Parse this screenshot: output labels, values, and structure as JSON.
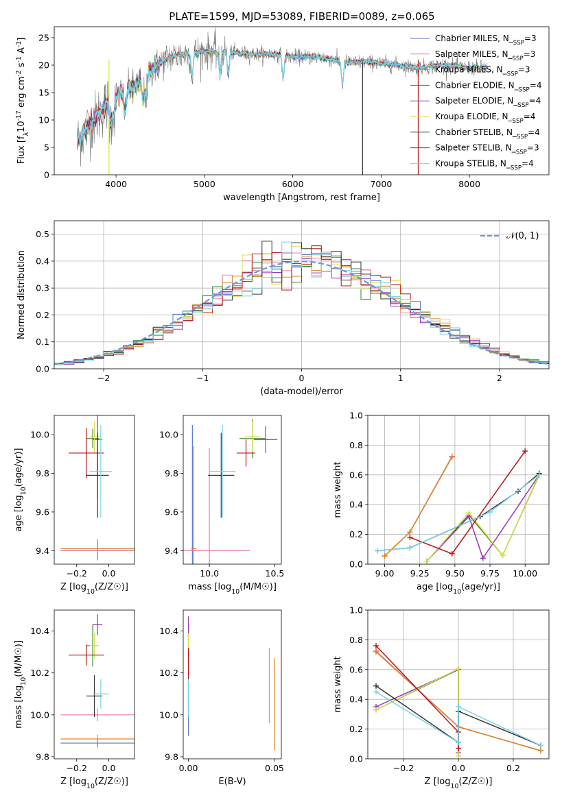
{
  "chart_data": [
    {
      "type": "line",
      "title": "PLATE=1599, MJD=53089, FIBERID=0089, z=0.065",
      "xlabel": "wavelength [Angstrom, rest frame]",
      "ylabel": "Flux [f_λ10^-17 erg cm^-2 s^-1 A^-1]",
      "xlim": [
        3300,
        8900
      ],
      "ylim": [
        0,
        27
      ],
      "xticks": [
        4000,
        5000,
        6000,
        7000,
        8000
      ],
      "yticks": [
        0,
        5,
        10,
        15,
        20,
        25
      ],
      "legend_position": "top-right",
      "series": [
        {
          "name": "Chabrier MILES, N_SSP=3",
          "color": "#5577cc"
        },
        {
          "name": "Salpeter MILES, N_SSP=3",
          "color": "#ee7f9f"
        },
        {
          "name": "Kroupa MILES, N_SSP=3",
          "color": "#dd8822"
        },
        {
          "name": "Chabrier ELODIE, N_SSP=4",
          "color": "#2f7f2f"
        },
        {
          "name": "Salpeter ELODIE, N_SSP=4",
          "color": "#9933bb"
        },
        {
          "name": "Kroupa ELODIE, N_SSP=4",
          "color": "#d8e04a"
        },
        {
          "name": "Chabrier STELIB, N_SSP=4",
          "color": "#333333"
        },
        {
          "name": "Salpeter STELIB, N_SSP=3",
          "color": "#bb1111"
        },
        {
          "name": "Kroupa STELIB, N_SSP=4",
          "color": "#77d3e6"
        }
      ],
      "continuum_shape": {
        "x": [
          3560,
          3700,
          3900,
          4050,
          4200,
          4400,
          4600,
          4800,
          5000,
          5200,
          5500,
          5800,
          6000,
          6300,
          6600,
          6900,
          7200,
          7400,
          7700,
          8000,
          8200
        ],
        "y": [
          6,
          9,
          13,
          15,
          16,
          19,
          21.5,
          22,
          22.5,
          22.5,
          22,
          22,
          21.5,
          21.5,
          20.5,
          20.5,
          20,
          19.5,
          20,
          19.5,
          19.5
        ]
      },
      "data_line_color": "#777777"
    },
    {
      "type": "line",
      "title": "",
      "xlabel": "(data-model)/error",
      "ylabel": "Normed distribution",
      "xlim": [
        -2.5,
        2.5
      ],
      "ylim": [
        0,
        0.55
      ],
      "xticks": [
        -2,
        -1,
        0,
        1,
        2
      ],
      "yticks": [
        0.0,
        0.1,
        0.2,
        0.3,
        0.4,
        0.5
      ],
      "grid": true,
      "legend_position": "top-right",
      "reference_curve": {
        "name": "𝒩(0, 1)",
        "color": "#6699dd",
        "style": "dashed"
      },
      "histogram_bins": 50,
      "histogram_colors": [
        "#5577cc",
        "#ee7f9f",
        "#dd8822",
        "#2f7f2f",
        "#9933bb",
        "#d8e04a",
        "#333333",
        "#bb1111",
        "#77d3e6"
      ]
    },
    {
      "type": "scatter",
      "title": "",
      "xlabel": "Z [log10(Z/Z☉)]",
      "ylabel": "age  [log10(age/yr)]",
      "xlim": [
        -0.34,
        0.16
      ],
      "ylim": [
        9.33,
        10.1
      ],
      "xticks": [
        -0.2,
        0.0
      ],
      "yticks": [
        9.4,
        9.6,
        9.8,
        10.0
      ],
      "points": [
        {
          "color": "#5577cc",
          "x": -0.07,
          "y": 9.4,
          "xerr": 0.23,
          "yerr": 0.05
        },
        {
          "color": "#ee7f9f",
          "x": -0.07,
          "y": 9.4,
          "xerr": 0.23,
          "yerr": 0.05
        },
        {
          "color": "#dd8822",
          "x": -0.07,
          "y": 9.41,
          "xerr": 0.23,
          "yerr": 0.05
        },
        {
          "color": "#2f7f2f",
          "x": -0.1,
          "y": 9.98,
          "xerr": 0.04,
          "yerr": 0.05
        },
        {
          "color": "#9933bb",
          "x": -0.07,
          "y": 9.975,
          "xerr": 0.03,
          "yerr": 0.3
        },
        {
          "color": "#d8e04a",
          "x": -0.09,
          "y": 9.99,
          "xerr": 0.03,
          "yerr": 0.08
        },
        {
          "color": "#333333",
          "x": -0.07,
          "y": 9.79,
          "xerr": 0.07,
          "yerr": 0.22
        },
        {
          "color": "#bb1111",
          "x": -0.14,
          "y": 9.905,
          "xerr": 0.11,
          "yerr": 0.13
        },
        {
          "color": "#77d3e6",
          "x": -0.05,
          "y": 9.81,
          "xerr": 0.07,
          "yerr": 0.24
        }
      ]
    },
    {
      "type": "scatter",
      "title": "",
      "xlabel": "mass [log10(M/M☉)]",
      "ylabel": "",
      "xlim": [
        9.8,
        10.55
      ],
      "ylim": [
        9.33,
        10.1
      ],
      "xticks": [
        10.0,
        10.5
      ],
      "yticks": [
        9.4,
        9.6,
        9.8,
        10.0
      ],
      "points": [
        {
          "color": "#5577cc",
          "x": 9.87,
          "y": 9.4,
          "xerr": 0.02,
          "yerr": 0.65
        },
        {
          "color": "#ee7f9f",
          "x": 10.0,
          "y": 9.4,
          "xerr": 0.31,
          "yerr": 0.53
        },
        {
          "color": "#dd8822",
          "x": 9.88,
          "y": 9.41,
          "xerr": 0.02,
          "yerr": 0.53
        },
        {
          "color": "#2f7f2f",
          "x": 10.33,
          "y": 9.98,
          "xerr": 0.1,
          "yerr": 0.1
        },
        {
          "color": "#9933bb",
          "x": 10.43,
          "y": 9.975,
          "xerr": 0.09,
          "yerr": 0.07
        },
        {
          "color": "#d8e04a",
          "x": 10.33,
          "y": 9.99,
          "xerr": 0.06,
          "yerr": 0.08
        },
        {
          "color": "#333333",
          "x": 10.09,
          "y": 9.79,
          "xerr": 0.1,
          "yerr": 0.22
        },
        {
          "color": "#bb1111",
          "x": 10.28,
          "y": 9.905,
          "xerr": 0.07,
          "yerr": 0.07
        },
        {
          "color": "#77d3e6",
          "x": 10.1,
          "y": 9.81,
          "xerr": 0.1,
          "yerr": 0.24
        }
      ]
    },
    {
      "type": "line",
      "title": "",
      "xlabel": "age  [log10(age/yr)]",
      "ylabel": "mass weight",
      "xlim": [
        8.88,
        10.17
      ],
      "ylim": [
        0,
        1
      ],
      "xticks": [
        9.0,
        9.25,
        9.5,
        9.75,
        10.0
      ],
      "yticks": [
        0.0,
        0.2,
        0.4,
        0.6,
        0.8,
        1.0
      ],
      "grid": true,
      "series": [
        {
          "color": "#5577cc",
          "x": [
            9.0,
            9.18,
            9.48
          ],
          "y": [
            0.055,
            0.215,
            0.725
          ]
        },
        {
          "color": "#ee7f9f",
          "x": [
            9.0,
            9.18,
            9.48
          ],
          "y": [
            0.055,
            0.215,
            0.725
          ]
        },
        {
          "color": "#dd8822",
          "x": [
            9.0,
            9.18,
            9.48
          ],
          "y": [
            0.055,
            0.215,
            0.72
          ]
        },
        {
          "color": "#2f7f2f",
          "x": [
            9.3,
            9.6,
            9.84,
            10.1
          ],
          "y": [
            0.02,
            0.33,
            0.06,
            0.6
          ]
        },
        {
          "color": "#9933bb",
          "x": [
            9.3,
            9.6,
            9.7,
            10.1
          ],
          "y": [
            0.02,
            0.32,
            0.04,
            0.6
          ]
        },
        {
          "color": "#d8e04a",
          "x": [
            9.3,
            9.6,
            9.84,
            10.1
          ],
          "y": [
            0.02,
            0.345,
            0.06,
            0.605
          ]
        },
        {
          "color": "#333333",
          "x": [
            8.95,
            9.18,
            9.68,
            9.95,
            10.1
          ],
          "y": [
            0.09,
            0.11,
            0.32,
            0.49,
            0.61
          ]
        },
        {
          "color": "#bb1111",
          "x": [
            9.18,
            9.48,
            10.0
          ],
          "y": [
            0.18,
            0.07,
            0.76
          ]
        },
        {
          "color": "#77d3e6",
          "x": [
            8.95,
            9.18,
            9.75,
            10.1
          ],
          "y": [
            0.09,
            0.11,
            0.35,
            0.6
          ]
        }
      ]
    },
    {
      "type": "scatter",
      "title": "",
      "xlabel": "Z [log10(Z/Z☉)]",
      "ylabel": "mass [log10(M/M☉)]",
      "xlim": [
        -0.34,
        0.16
      ],
      "ylim": [
        9.79,
        10.5
      ],
      "xticks": [
        -0.2,
        0.0
      ],
      "yticks": [
        9.8,
        10.0,
        10.2,
        10.4
      ],
      "points": [
        {
          "color": "#5577cc",
          "x": -0.07,
          "y": 9.865,
          "xerr": 0.23,
          "yerr": 0.02
        },
        {
          "color": "#ee7f9f",
          "x": -0.07,
          "y": 10.0,
          "xerr": 0.23,
          "yerr": 0.03
        },
        {
          "color": "#dd8822",
          "x": -0.07,
          "y": 9.885,
          "xerr": 0.23,
          "yerr": 0.02
        },
        {
          "color": "#2f7f2f",
          "x": -0.1,
          "y": 10.33,
          "xerr": 0.04,
          "yerr": 0.1
        },
        {
          "color": "#9933bb",
          "x": -0.07,
          "y": 10.43,
          "xerr": 0.03,
          "yerr": 0.05
        },
        {
          "color": "#d8e04a",
          "x": -0.09,
          "y": 10.33,
          "xerr": 0.03,
          "yerr": 0.06
        },
        {
          "color": "#333333",
          "x": -0.09,
          "y": 10.09,
          "xerr": 0.05,
          "yerr": 0.1
        },
        {
          "color": "#bb1111",
          "x": -0.14,
          "y": 10.285,
          "xerr": 0.11,
          "yerr": 0.05
        },
        {
          "color": "#77d3e6",
          "x": -0.05,
          "y": 10.1,
          "xerr": 0.05,
          "yerr": 0.07
        }
      ]
    },
    {
      "type": "scatter",
      "title": "",
      "xlabel": "E(B-V)",
      "ylabel": "",
      "xlim": [
        -0.003,
        0.054
      ],
      "ylim": [
        9.79,
        10.5
      ],
      "xticks": [
        0.0,
        0.05
      ],
      "yticks": [
        9.8,
        10.0,
        10.2,
        10.4
      ],
      "points": [
        {
          "color": "#5577cc",
          "x": 0.0,
          "y": 9.95,
          "yerr": 0.05
        },
        {
          "color": "#ee7f9f",
          "x": 0.047,
          "y": 10.14,
          "yerr": 0.18
        },
        {
          "color": "#dd8822",
          "x": 0.05,
          "y": 10.05,
          "yerr": 0.22
        },
        {
          "color": "#2f7f2f",
          "x": 0.0,
          "y": 10.32,
          "yerr": 0.08
        },
        {
          "color": "#9933bb",
          "x": 0.0,
          "y": 10.42,
          "yerr": 0.05
        },
        {
          "color": "#d8e04a",
          "x": 0.0,
          "y": 10.33,
          "yerr": 0.06
        },
        {
          "color": "#333333",
          "x": 0.0,
          "y": 10.09,
          "yerr": 0.1
        },
        {
          "color": "#bb1111",
          "x": 0.0,
          "y": 10.25,
          "yerr": 0.07
        },
        {
          "color": "#77d3e6",
          "x": 0.0,
          "y": 10.08,
          "yerr": 0.09
        }
      ]
    },
    {
      "type": "line",
      "title": "",
      "xlabel": "Z [log10(Z/Z☉)]",
      "ylabel": "mass weight",
      "xlim": [
        -0.33,
        0.33
      ],
      "ylim": [
        0,
        1
      ],
      "xticks": [
        -0.2,
        0.0,
        0.2
      ],
      "yticks": [
        0.0,
        0.2,
        0.4,
        0.6,
        0.8,
        1.0
      ],
      "grid": true,
      "series": [
        {
          "color": "#5577cc",
          "x": [
            -0.3,
            0.0,
            0.3
          ],
          "y": [
            0.72,
            0.215,
            0.055
          ]
        },
        {
          "color": "#ee7f9f",
          "x": [
            -0.3,
            0.0,
            0.3
          ],
          "y": [
            0.725,
            0.215,
            0.055
          ]
        },
        {
          "color": "#dd8822",
          "x": [
            -0.3,
            0.0,
            0.3
          ],
          "y": [
            0.72,
            0.215,
            0.055
          ]
        },
        {
          "color": "#2f7f2f",
          "x": [
            -0.3,
            0.0,
            0.0
          ],
          "y": [
            0.33,
            0.6,
            0.02
          ]
        },
        {
          "color": "#9933bb",
          "x": [
            -0.3,
            0.0,
            0.0
          ],
          "y": [
            0.35,
            0.6,
            0.04
          ]
        },
        {
          "color": "#d8e04a",
          "x": [
            -0.3,
            0.0,
            0.0
          ],
          "y": [
            0.33,
            0.605,
            0.02
          ]
        },
        {
          "color": "#333333",
          "x": [
            -0.3,
            0.0,
            0.0,
            0.3
          ],
          "y": [
            0.49,
            0.11,
            0.32,
            0.09
          ]
        },
        {
          "color": "#bb1111",
          "x": [
            -0.3,
            0.0,
            0.0
          ],
          "y": [
            0.76,
            0.18,
            0.07
          ]
        },
        {
          "color": "#77d3e6",
          "x": [
            -0.3,
            0.0,
            0.0,
            0.3
          ],
          "y": [
            0.45,
            0.11,
            0.35,
            0.09
          ]
        }
      ]
    }
  ]
}
